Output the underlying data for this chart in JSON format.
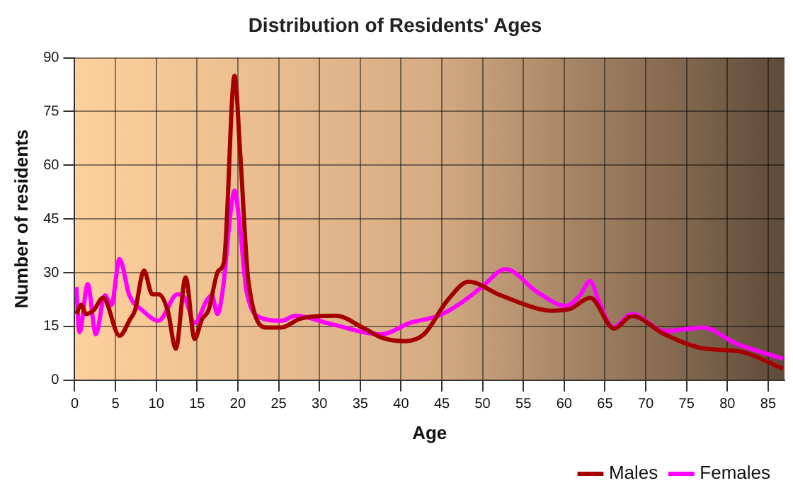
{
  "chart_data": {
    "type": "line",
    "title": "Distribution of Residents' Ages",
    "xlabel": "Age",
    "ylabel": "Number of residents",
    "xlim": [
      0,
      87
    ],
    "xticks": [
      0,
      5,
      10,
      15,
      20,
      25,
      30,
      35,
      40,
      45,
      50,
      55,
      60,
      65,
      70,
      75,
      80,
      85
    ],
    "ylim": [
      0,
      90
    ],
    "yticks": [
      0,
      15,
      30,
      45,
      60,
      75,
      90
    ],
    "grid": true,
    "legend": "bottom right",
    "marker": "none",
    "line_style": "solid",
    "series": [
      {
        "name": "Males",
        "color": "#a50000",
        "x": [
          0.2,
          0.8,
          1.4,
          2.3,
          3.5,
          5.5,
          6.8,
          7.4,
          8.5,
          9.5,
          10.3,
          11.4,
          12.4,
          13.6,
          14.7,
          15.6,
          16.4,
          17.6,
          18.3,
          19.6,
          20.3,
          21.3,
          23.6,
          25.3,
          27.7,
          32,
          35.3,
          37.6,
          40.5,
          42.8,
          45.7,
          48.3,
          52,
          56.7,
          58.4,
          60.7,
          63.2,
          66.1,
          68.3,
          72.3,
          77,
          81.6,
          86.8
        ],
        "values": [
          18.5,
          21,
          18.5,
          19.5,
          23,
          12.4,
          17,
          19.5,
          30.6,
          24,
          24,
          19.5,
          8.8,
          28.7,
          11.5,
          17,
          19.5,
          30.5,
          33,
          85,
          63,
          27.5,
          14.7,
          14.7,
          17.2,
          18,
          14.7,
          11.9,
          10.9,
          12.8,
          22.3,
          27.5,
          23.9,
          20,
          19.4,
          19.9,
          23,
          14.4,
          17.9,
          12.8,
          8.9,
          8,
          3.2
        ]
      },
      {
        "name": "Females",
        "color": "#ff00ff",
        "x": [
          0.2,
          0.6,
          1.6,
          2.6,
          3.7,
          4.5,
          5.5,
          6.7,
          8.3,
          10.3,
          12.6,
          13.5,
          14.7,
          16.2,
          16.8,
          17.5,
          18.2,
          19.1,
          19.6,
          20.2,
          21.1,
          23.1,
          25.3,
          27.1,
          31.2,
          37.6,
          41.1,
          44.6,
          47,
          49.9,
          52.8,
          56.7,
          60.2,
          61.9,
          63.2,
          64.2,
          66,
          68.3,
          72.3,
          77,
          81,
          86.8
        ],
        "values": [
          26,
          13.4,
          26.8,
          12.8,
          23.7,
          21,
          33.8,
          23.7,
          19.5,
          16.6,
          24,
          23,
          16,
          22.3,
          23.7,
          18.5,
          26,
          46.7,
          52.9,
          44,
          24.4,
          17.2,
          16.6,
          18,
          15.8,
          12.8,
          16,
          18,
          21,
          26,
          31,
          24.6,
          20.7,
          23.6,
          27.7,
          22.3,
          14.7,
          18.5,
          13.7,
          14.7,
          10.3,
          6
        ]
      }
    ]
  }
}
